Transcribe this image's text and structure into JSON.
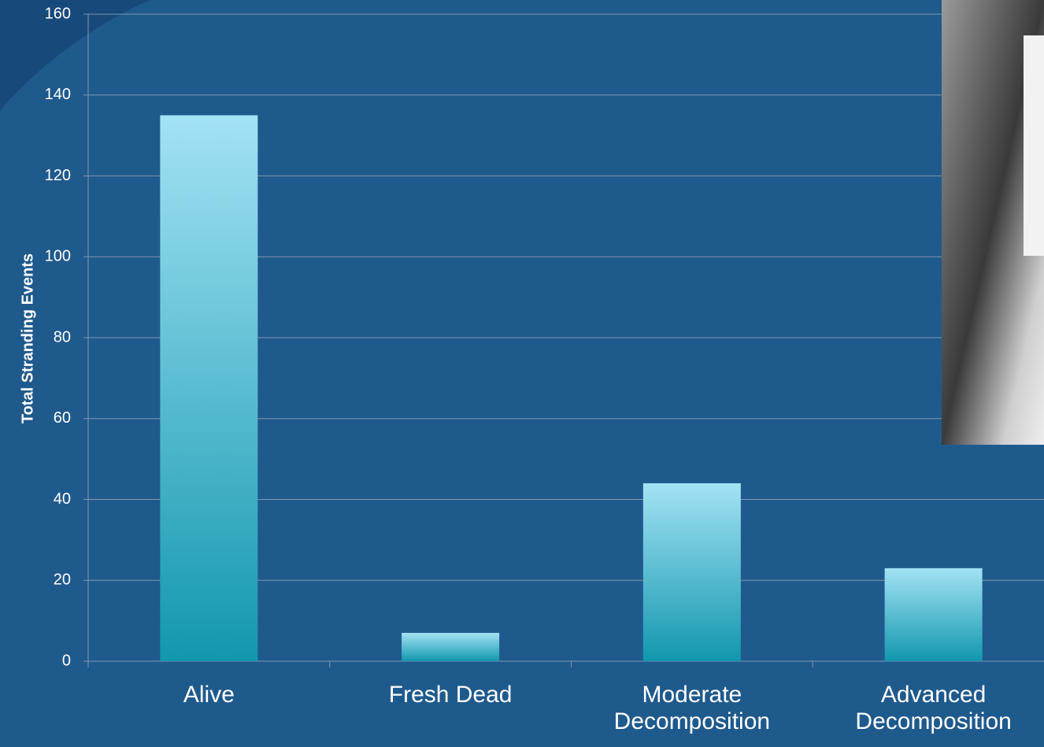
{
  "chart_data": {
    "type": "bar",
    "y_label": "Total Stranding Events",
    "categories": [
      "Alive",
      "Fresh Dead",
      "Moderate Decomposition",
      "Advanced Decomposition"
    ],
    "values": [
      135,
      7,
      44,
      23
    ],
    "ylim": [
      0,
      160
    ],
    "yticks": [
      0,
      20,
      40,
      60,
      80,
      100,
      120,
      140,
      160
    ],
    "grid": true
  }
}
